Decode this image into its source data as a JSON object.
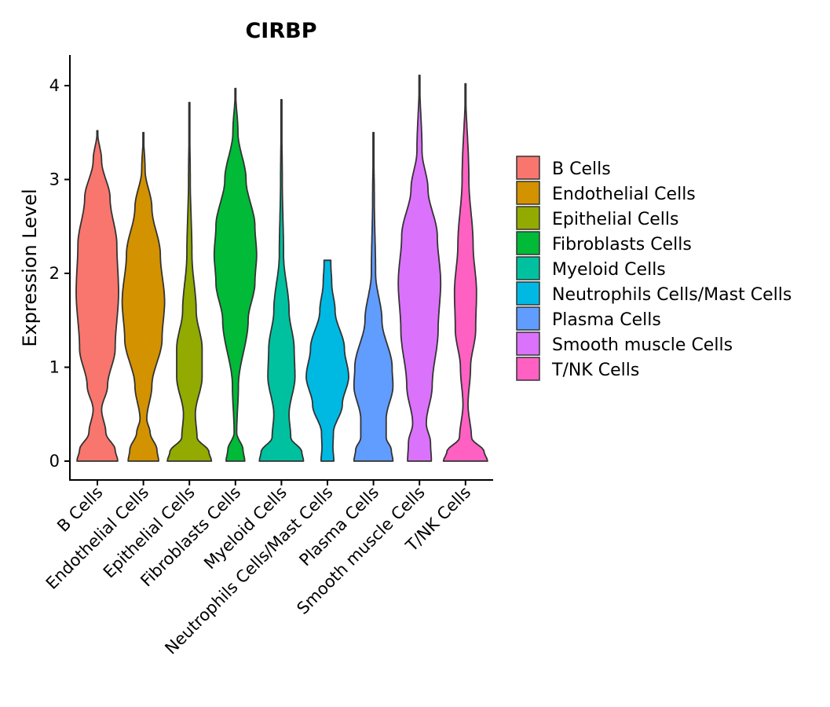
{
  "chart_data": {
    "type": "violin",
    "title": "CIRBP",
    "xlabel": "",
    "ylabel": "Expression Level",
    "ylim": [
      0,
      4.3
    ],
    "yticks": [
      "0",
      "1",
      "2",
      "3",
      "4"
    ],
    "categories": [
      "B Cells",
      "Endothelial Cells",
      "Epithelial Cells",
      "Fibroblasts Cells",
      "Myeloid Cells",
      "Neutrophils Cells/Mast Cells",
      "Plasma Cells",
      "Smooth muscle Cells",
      "T/NK Cells"
    ],
    "colors": [
      "#F8766D",
      "#D39200",
      "#93AA00",
      "#00BA38",
      "#00C19F",
      "#00B9E3",
      "#619CFF",
      "#DB72FB",
      "#FF61C3"
    ],
    "series": [
      {
        "name": "B Cells",
        "max": 3.52,
        "profile": [
          [
            0,
            0.48
          ],
          [
            0.12,
            0.42
          ],
          [
            0.3,
            0.2
          ],
          [
            0.55,
            0.1
          ],
          [
            0.8,
            0.24
          ],
          [
            1.2,
            0.42
          ],
          [
            1.8,
            0.5
          ],
          [
            2.3,
            0.46
          ],
          [
            2.8,
            0.3
          ],
          [
            3.2,
            0.1
          ],
          [
            3.52,
            0
          ]
        ]
      },
      {
        "name": "Endothelial Cells",
        "max": 3.5,
        "profile": [
          [
            0,
            0.36
          ],
          [
            0.12,
            0.32
          ],
          [
            0.3,
            0.16
          ],
          [
            0.45,
            0.08
          ],
          [
            0.8,
            0.2
          ],
          [
            1.3,
            0.44
          ],
          [
            1.7,
            0.5
          ],
          [
            2.2,
            0.4
          ],
          [
            2.7,
            0.2
          ],
          [
            3.1,
            0.04
          ],
          [
            3.5,
            0
          ]
        ]
      },
      {
        "name": "Epithelial Cells",
        "max": 3.82,
        "profile": [
          [
            0,
            0.52
          ],
          [
            0.1,
            0.46
          ],
          [
            0.25,
            0.18
          ],
          [
            0.5,
            0.14
          ],
          [
            0.9,
            0.3
          ],
          [
            1.2,
            0.3
          ],
          [
            1.6,
            0.16
          ],
          [
            2.2,
            0.06
          ],
          [
            3.0,
            0.02
          ],
          [
            3.82,
            0
          ]
        ]
      },
      {
        "name": "Fibroblasts Cells",
        "max": 3.97,
        "profile": [
          [
            0,
            0.22
          ],
          [
            0.12,
            0.18
          ],
          [
            0.3,
            0.03
          ],
          [
            0.8,
            0.07
          ],
          [
            1.5,
            0.3
          ],
          [
            1.9,
            0.46
          ],
          [
            2.2,
            0.5
          ],
          [
            2.5,
            0.46
          ],
          [
            3.0,
            0.25
          ],
          [
            3.5,
            0.06
          ],
          [
            3.97,
            0
          ]
        ]
      },
      {
        "name": "Myeloid Cells",
        "max": 3.85,
        "profile": [
          [
            0,
            0.52
          ],
          [
            0.1,
            0.48
          ],
          [
            0.25,
            0.22
          ],
          [
            0.5,
            0.18
          ],
          [
            0.9,
            0.32
          ],
          [
            1.2,
            0.3
          ],
          [
            1.6,
            0.18
          ],
          [
            2.2,
            0.05
          ],
          [
            3.0,
            0.02
          ],
          [
            3.85,
            0
          ]
        ]
      },
      {
        "name": "Neutrophils Cells/Mast Cells",
        "max": 2.14,
        "profile": [
          [
            0,
            0.15
          ],
          [
            0.15,
            0.13
          ],
          [
            0.3,
            0.14
          ],
          [
            0.6,
            0.35
          ],
          [
            0.9,
            0.5
          ],
          [
            1.2,
            0.4
          ],
          [
            1.6,
            0.18
          ],
          [
            1.9,
            0.1
          ],
          [
            2.1,
            0.08
          ],
          [
            2.14,
            0.08
          ]
        ]
      },
      {
        "name": "Plasma Cells",
        "max": 3.5,
        "profile": [
          [
            0,
            0.46
          ],
          [
            0.12,
            0.42
          ],
          [
            0.25,
            0.3
          ],
          [
            0.45,
            0.3
          ],
          [
            0.8,
            0.46
          ],
          [
            1.0,
            0.44
          ],
          [
            1.5,
            0.2
          ],
          [
            2.0,
            0.05
          ],
          [
            2.8,
            0.02
          ],
          [
            3.5,
            0
          ]
        ]
      },
      {
        "name": "Smooth muscle Cells",
        "max": 4.11,
        "profile": [
          [
            0,
            0.28
          ],
          [
            0.2,
            0.26
          ],
          [
            0.4,
            0.16
          ],
          [
            0.8,
            0.3
          ],
          [
            1.4,
            0.44
          ],
          [
            1.9,
            0.5
          ],
          [
            2.4,
            0.42
          ],
          [
            2.9,
            0.2
          ],
          [
            3.3,
            0.06
          ],
          [
            4.11,
            0
          ]
        ]
      },
      {
        "name": "T/NK Cells",
        "max": 4.02,
        "profile": [
          [
            0,
            0.52
          ],
          [
            0.1,
            0.44
          ],
          [
            0.25,
            0.14
          ],
          [
            0.6,
            0.06
          ],
          [
            1.0,
            0.12
          ],
          [
            1.4,
            0.24
          ],
          [
            1.8,
            0.26
          ],
          [
            2.3,
            0.18
          ],
          [
            3.0,
            0.08
          ],
          [
            4.02,
            0
          ]
        ]
      }
    ]
  }
}
